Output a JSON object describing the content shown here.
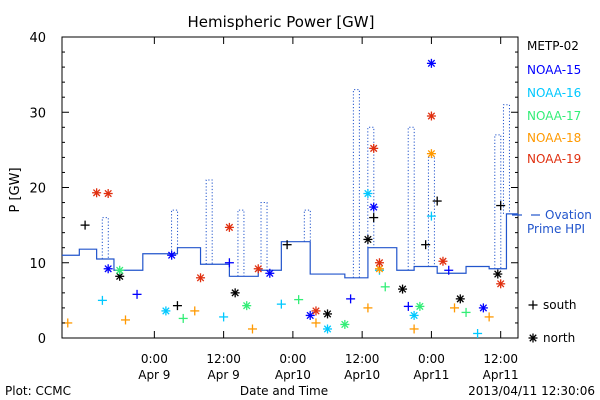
{
  "chart_data": {
    "type": "scatter",
    "title": "Hemispheric Power [GW]",
    "ylabel": "P [GW]",
    "xlabel": "Date and Time",
    "ylim": [
      0,
      40
    ],
    "yticks": [
      "0",
      "10",
      "20",
      "30",
      "40"
    ],
    "xlim": [
      "2013-04-08 08:00",
      "2013-04-11 15:00"
    ],
    "xticks": [
      {
        "x": "2013-04-09 00:00",
        "line1": "0:00",
        "line2": "Apr 9"
      },
      {
        "x": "2013-04-09 12:00",
        "line1": "12:00",
        "line2": "Apr 9"
      },
      {
        "x": "2013-04-10 00:00",
        "line1": "0:00",
        "line2": "Apr10"
      },
      {
        "x": "2013-04-10 12:00",
        "line1": "12:00",
        "line2": "Apr10"
      },
      {
        "x": "2013-04-11 00:00",
        "line1": "0:00",
        "line2": "Apr11"
      },
      {
        "x": "2013-04-11 12:00",
        "line1": "12:00",
        "line2": "Apr11"
      }
    ],
    "grid": false,
    "legend_position": "right",
    "footer": {
      "left": "Plot: CCMC",
      "right": "2013/04/11 12:30:06"
    },
    "symbol_legend": {
      "plus": "south",
      "star": "north"
    },
    "series": [
      {
        "name": "METP-02",
        "color": "#000000",
        "points": [
          {
            "x": "2013-04-08 12:00",
            "y": 15.0,
            "m": "plus"
          },
          {
            "x": "2013-04-08 18:00",
            "y": 8.2,
            "m": "star"
          },
          {
            "x": "2013-04-09 04:00",
            "y": 4.3,
            "m": "plus"
          },
          {
            "x": "2013-04-09 14:00",
            "y": 6.0,
            "m": "star"
          },
          {
            "x": "2013-04-09 23:00",
            "y": 12.4,
            "m": "plus"
          },
          {
            "x": "2013-04-10 06:00",
            "y": 3.2,
            "m": "star"
          },
          {
            "x": "2013-04-10 13:00",
            "y": 13.1,
            "m": "star"
          },
          {
            "x": "2013-04-10 14:00",
            "y": 16.0,
            "m": "plus"
          },
          {
            "x": "2013-04-10 19:00",
            "y": 6.5,
            "m": "star"
          },
          {
            "x": "2013-04-10 23:00",
            "y": 12.4,
            "m": "plus"
          },
          {
            "x": "2013-04-11 01:00",
            "y": 18.2,
            "m": "plus"
          },
          {
            "x": "2013-04-11 05:00",
            "y": 5.2,
            "m": "star"
          },
          {
            "x": "2013-04-11 12:00",
            "y": 17.6,
            "m": "plus"
          },
          {
            "x": "2013-04-11 11:30",
            "y": 8.5,
            "m": "star"
          }
        ]
      },
      {
        "name": "NOAA-15",
        "color": "#0000ff",
        "points": [
          {
            "x": "2013-04-08 16:00",
            "y": 9.2,
            "m": "star"
          },
          {
            "x": "2013-04-08 21:00",
            "y": 5.8,
            "m": "plus"
          },
          {
            "x": "2013-04-09 03:00",
            "y": 11.0,
            "m": "star"
          },
          {
            "x": "2013-04-09 13:00",
            "y": 10.0,
            "m": "plus"
          },
          {
            "x": "2013-04-09 20:00",
            "y": 8.6,
            "m": "star"
          },
          {
            "x": "2013-04-10 03:00",
            "y": 3.0,
            "m": "star"
          },
          {
            "x": "2013-04-10 10:00",
            "y": 5.2,
            "m": "plus"
          },
          {
            "x": "2013-04-10 14:00",
            "y": 17.4,
            "m": "star"
          },
          {
            "x": "2013-04-10 20:00",
            "y": 4.2,
            "m": "plus"
          },
          {
            "x": "2013-04-11 00:00",
            "y": 36.5,
            "m": "star"
          },
          {
            "x": "2013-04-11 03:00",
            "y": 9.0,
            "m": "plus"
          },
          {
            "x": "2013-04-11 09:00",
            "y": 4.0,
            "m": "star"
          }
        ]
      },
      {
        "name": "NOAA-16",
        "color": "#00c8ff",
        "points": [
          {
            "x": "2013-04-08 15:00",
            "y": 5.0,
            "m": "plus"
          },
          {
            "x": "2013-04-09 02:00",
            "y": 3.6,
            "m": "star"
          },
          {
            "x": "2013-04-09 12:00",
            "y": 2.8,
            "m": "plus"
          },
          {
            "x": "2013-04-09 22:00",
            "y": 4.5,
            "m": "plus"
          },
          {
            "x": "2013-04-10 06:00",
            "y": 1.2,
            "m": "star"
          },
          {
            "x": "2013-04-10 13:00",
            "y": 19.2,
            "m": "star"
          },
          {
            "x": "2013-04-10 15:00",
            "y": 9.0,
            "m": "plus"
          },
          {
            "x": "2013-04-10 21:00",
            "y": 3.0,
            "m": "star"
          },
          {
            "x": "2013-04-11 00:00",
            "y": 16.2,
            "m": "plus"
          },
          {
            "x": "2013-04-11 08:00",
            "y": 0.6,
            "m": "plus"
          }
        ]
      },
      {
        "name": "NOAA-17",
        "color": "#33ee77",
        "points": [
          {
            "x": "2013-04-08 18:00",
            "y": 9.0,
            "m": "star"
          },
          {
            "x": "2013-04-09 05:00",
            "y": 2.6,
            "m": "plus"
          },
          {
            "x": "2013-04-09 16:00",
            "y": 4.3,
            "m": "star"
          },
          {
            "x": "2013-04-10 01:00",
            "y": 5.1,
            "m": "plus"
          },
          {
            "x": "2013-04-10 09:00",
            "y": 1.8,
            "m": "star"
          },
          {
            "x": "2013-04-10 16:00",
            "y": 6.8,
            "m": "plus"
          },
          {
            "x": "2013-04-10 22:00",
            "y": 4.2,
            "m": "star"
          },
          {
            "x": "2013-04-11 06:00",
            "y": 3.4,
            "m": "plus"
          }
        ]
      },
      {
        "name": "NOAA-18",
        "color": "#ff9900",
        "points": [
          {
            "x": "2013-04-08 09:00",
            "y": 2.0,
            "m": "plus"
          },
          {
            "x": "2013-04-08 19:00",
            "y": 2.4,
            "m": "plus"
          },
          {
            "x": "2013-04-09 07:00",
            "y": 3.6,
            "m": "plus"
          },
          {
            "x": "2013-04-09 17:00",
            "y": 1.2,
            "m": "plus"
          },
          {
            "x": "2013-04-10 04:00",
            "y": 2.0,
            "m": "plus"
          },
          {
            "x": "2013-04-10 13:00",
            "y": 4.0,
            "m": "plus"
          },
          {
            "x": "2013-04-10 15:00",
            "y": 9.2,
            "m": "star"
          },
          {
            "x": "2013-04-10 21:00",
            "y": 1.2,
            "m": "plus"
          },
          {
            "x": "2013-04-11 00:00",
            "y": 24.5,
            "m": "star"
          },
          {
            "x": "2013-04-11 04:00",
            "y": 4.0,
            "m": "plus"
          },
          {
            "x": "2013-04-11 10:00",
            "y": 2.8,
            "m": "plus"
          }
        ]
      },
      {
        "name": "NOAA-19",
        "color": "#e03010",
        "points": [
          {
            "x": "2013-04-08 14:00",
            "y": 19.3,
            "m": "star"
          },
          {
            "x": "2013-04-08 16:00",
            "y": 19.2,
            "m": "star"
          },
          {
            "x": "2013-04-09 08:00",
            "y": 8.0,
            "m": "star"
          },
          {
            "x": "2013-04-09 13:00",
            "y": 14.7,
            "m": "star"
          },
          {
            "x": "2013-04-09 18:00",
            "y": 9.2,
            "m": "star"
          },
          {
            "x": "2013-04-10 04:00",
            "y": 3.6,
            "m": "star"
          },
          {
            "x": "2013-04-10 14:00",
            "y": 25.2,
            "m": "star"
          },
          {
            "x": "2013-04-10 15:00",
            "y": 10.0,
            "m": "star"
          },
          {
            "x": "2013-04-11 00:00",
            "y": 29.5,
            "m": "star"
          },
          {
            "x": "2013-04-11 02:00",
            "y": 10.2,
            "m": "star"
          },
          {
            "x": "2013-04-11 12:00",
            "y": 7.2,
            "m": "star"
          }
        ]
      }
    ],
    "ovation": {
      "name": "Ovation Prime HPI",
      "color": "#2255cc",
      "solid_steps": [
        {
          "x": "2013-04-08 08:00",
          "y": 11.0
        },
        {
          "x": "2013-04-08 11:00",
          "y": 11.8
        },
        {
          "x": "2013-04-08 14:00",
          "y": 10.5
        },
        {
          "x": "2013-04-08 17:00",
          "y": 9.0
        },
        {
          "x": "2013-04-08 22:00",
          "y": 11.2
        },
        {
          "x": "2013-04-09 04:00",
          "y": 12.0
        },
        {
          "x": "2013-04-09 08:00",
          "y": 9.8
        },
        {
          "x": "2013-04-09 13:00",
          "y": 8.2
        },
        {
          "x": "2013-04-09 18:00",
          "y": 9.0
        },
        {
          "x": "2013-04-09 22:00",
          "y": 12.8
        },
        {
          "x": "2013-04-10 03:00",
          "y": 8.5
        },
        {
          "x": "2013-04-10 09:00",
          "y": 8.0
        },
        {
          "x": "2013-04-10 13:00",
          "y": 12.0
        },
        {
          "x": "2013-04-10 18:00",
          "y": 9.0
        },
        {
          "x": "2013-04-10 21:00",
          "y": 9.5
        },
        {
          "x": "2013-04-11 01:00",
          "y": 8.6
        },
        {
          "x": "2013-04-11 06:00",
          "y": 9.5
        },
        {
          "x": "2013-04-11 10:00",
          "y": 9.2
        },
        {
          "x": "2013-04-11 13:00",
          "y": 16.5
        },
        {
          "x": "2013-04-11 15:00",
          "y": 16.5
        }
      ],
      "dotted_peaks": [
        {
          "x": "2013-04-08 15:30",
          "y": 16.0
        },
        {
          "x": "2013-04-09 03:30",
          "y": 17.0
        },
        {
          "x": "2013-04-09 09:30",
          "y": 21.0
        },
        {
          "x": "2013-04-09 15:00",
          "y": 17.0
        },
        {
          "x": "2013-04-09 19:00",
          "y": 18.0
        },
        {
          "x": "2013-04-10 02:30",
          "y": 17.0
        },
        {
          "x": "2013-04-10 11:00",
          "y": 33.0
        },
        {
          "x": "2013-04-10 13:30",
          "y": 28.0
        },
        {
          "x": "2013-04-10 20:30",
          "y": 28.0
        },
        {
          "x": "2013-04-11 00:00",
          "y": 24.0
        },
        {
          "x": "2013-04-11 11:30",
          "y": 27.0
        },
        {
          "x": "2013-04-11 13:00",
          "y": 31.0
        }
      ]
    }
  }
}
